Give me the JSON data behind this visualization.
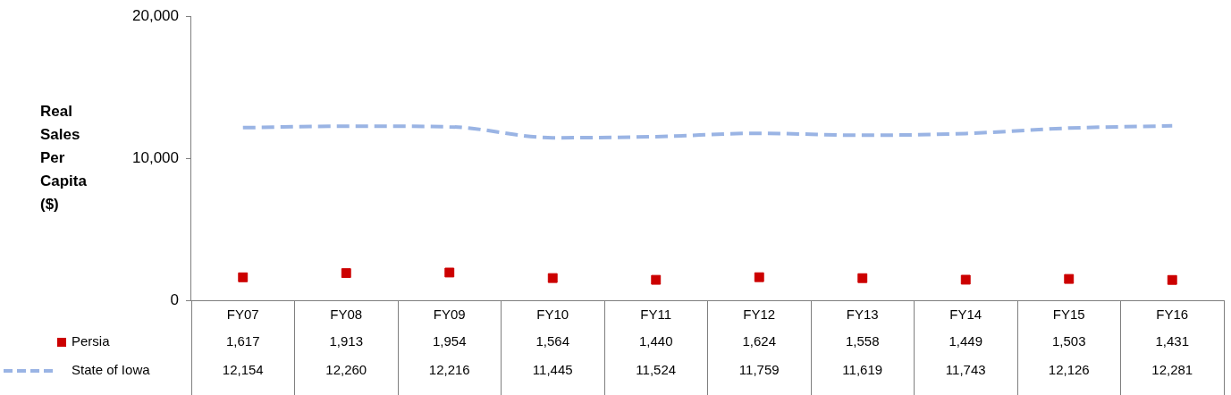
{
  "chart_data": {
    "type": "line",
    "ylabel": "Real Sales Per Capita ($)",
    "categories": [
      "FY07",
      "FY08",
      "FY09",
      "FY10",
      "FY11",
      "FY12",
      "FY13",
      "FY14",
      "FY15",
      "FY16"
    ],
    "series": [
      {
        "name": "Persia",
        "type": "scatter",
        "color": "#cc0000",
        "marker": "square",
        "values": [
          1617,
          1913,
          1954,
          1564,
          1440,
          1624,
          1558,
          1449,
          1503,
          1431
        ],
        "value_labels": [
          "1,617",
          "1,913",
          "1,954",
          "1,564",
          "1,440",
          "1,624",
          "1,558",
          "1,449",
          "1,503",
          "1,431"
        ]
      },
      {
        "name": "State of Iowa",
        "color": "#9ab4e4",
        "marker": "none",
        "line_style": "dashed",
        "values": [
          12154,
          12260,
          12216,
          11445,
          11524,
          11759,
          11619,
          11743,
          12126,
          12281
        ],
        "value_labels": [
          "12,154",
          "12,260",
          "12,216",
          "11,445",
          "11,524",
          "11,759",
          "11,619",
          "11,743",
          "12,126",
          "12,281"
        ]
      }
    ],
    "ylim": [
      0,
      20000
    ],
    "yticks": [
      {
        "value": 0,
        "label": "0"
      },
      {
        "value": 10000,
        "label": "10,000"
      },
      {
        "value": 20000,
        "label": "20,000"
      }
    ],
    "grid": false,
    "legend": "bottom"
  }
}
